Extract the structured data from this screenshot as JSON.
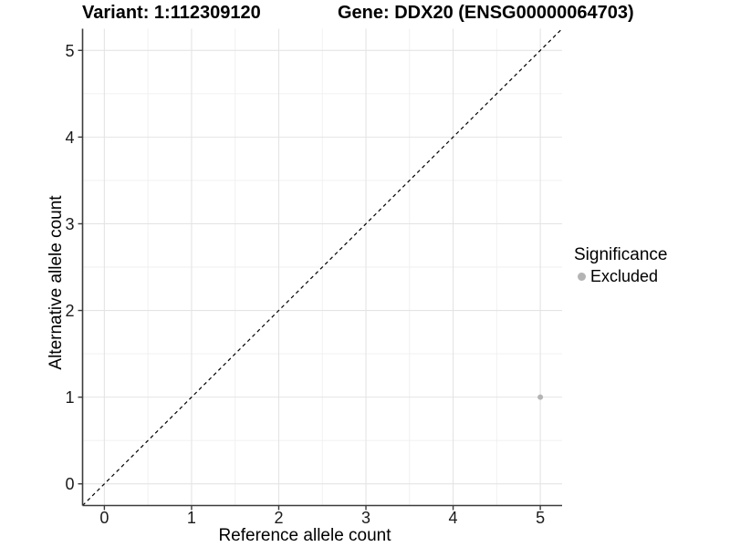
{
  "colors": {
    "background": "#ffffff",
    "grid_major": "#e4e4e4",
    "grid_minor": "#efefef",
    "axis": "#3c3c3c",
    "tick_text": "#1a1a1a",
    "title_text": "#000000",
    "excluded_point": "#b4b4b4",
    "identity_line": "#000000"
  },
  "chart_data": {
    "type": "scatter",
    "title_left": "Variant: 1:112309120",
    "title_right": "Gene: DDX20 (ENSG00000064703)",
    "xlabel": "Reference allele count",
    "ylabel": "Alternative allele count",
    "xlim": [
      -0.25,
      5.25
    ],
    "ylim": [
      -0.25,
      5.25
    ],
    "xticks": [
      0,
      1,
      2,
      3,
      4,
      5
    ],
    "yticks": [
      0,
      1,
      2,
      3,
      4,
      5
    ],
    "xticks_minor": [
      0.5,
      1.5,
      2.5,
      3.5,
      4.5
    ],
    "yticks_minor": [
      0.5,
      1.5,
      2.5,
      3.5,
      4.5
    ],
    "grid": true,
    "identity_line": {
      "style": "dashed",
      "from": [
        -0.25,
        -0.25
      ],
      "to": [
        5.25,
        5.25
      ],
      "color": "#000000"
    },
    "series": [
      {
        "name": "Excluded",
        "color": "#b4b4b4",
        "points": [
          {
            "x": 5,
            "y": 1
          }
        ]
      }
    ],
    "legend": {
      "title": "Significance",
      "position": "right",
      "items": [
        {
          "label": "Excluded",
          "color": "#b4b4b4"
        }
      ]
    }
  }
}
